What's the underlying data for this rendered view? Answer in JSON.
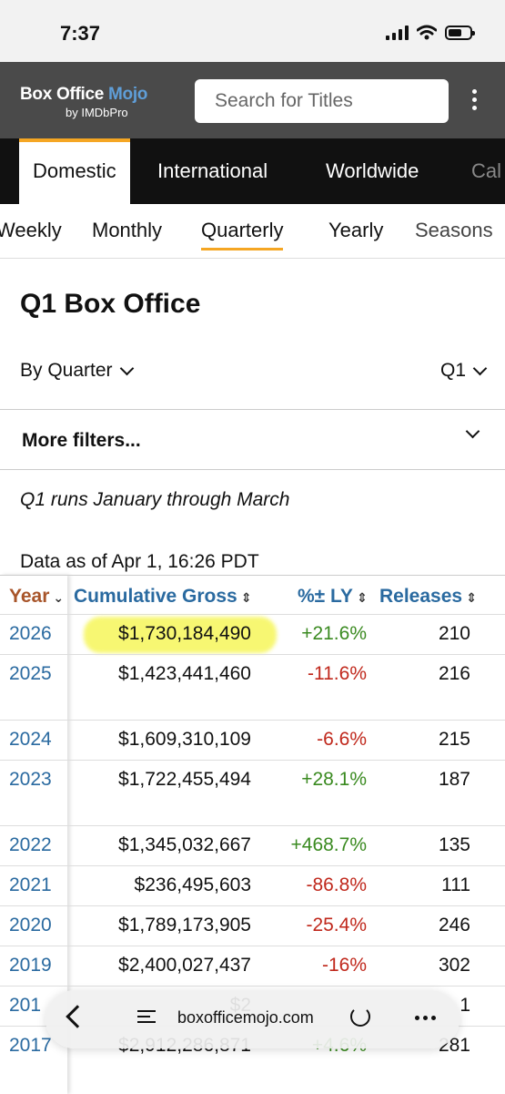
{
  "status": {
    "time": "7:37"
  },
  "header": {
    "logo_main": "Box Office ",
    "logo_accent": "Mojo",
    "logo_sub": "by IMDbPro",
    "search_placeholder": "Search for Titles"
  },
  "region_tabs": [
    "Domestic",
    "International",
    "Worldwide",
    "Cal"
  ],
  "period_tabs": [
    "Weekly",
    "Monthly",
    "Quarterly",
    "Yearly",
    "Seasons"
  ],
  "page": {
    "title": "Q1 Box Office",
    "by_select": "By Quarter",
    "quarter_select": "Q1",
    "more_filters": "More filters...",
    "note": "Q1 runs January through March",
    "as_of": "Data as of Apr 1, 16:26 PDT"
  },
  "table": {
    "headers": {
      "year": "Year",
      "gross": "Cumulative Gross",
      "change": "%± LY",
      "releases": "Releases"
    },
    "rows": [
      {
        "year": "2026",
        "gross": "$1,730,184,490",
        "change": "+21.6%",
        "releases": "210",
        "highlight": true
      },
      {
        "year": "2025",
        "gross": "$1,423,441,460",
        "change": "-11.6%",
        "releases": "216"
      },
      {
        "year": "2024",
        "gross": "$1,609,310,109",
        "change": "-6.6%",
        "releases": "215"
      },
      {
        "year": "2023",
        "gross": "$1,722,455,494",
        "change": "+28.1%",
        "releases": "187"
      },
      {
        "year": "2022",
        "gross": "$1,345,032,667",
        "change": "+468.7%",
        "releases": "135"
      },
      {
        "year": "2021",
        "gross": "$236,495,603",
        "change": "-86.8%",
        "releases": "111"
      },
      {
        "year": "2020",
        "gross": "$1,789,173,905",
        "change": "-25.4%",
        "releases": "246"
      },
      {
        "year": "2019",
        "gross": "$2,400,027,437",
        "change": "-16%",
        "releases": "302"
      },
      {
        "year": "201",
        "gross": "$2",
        "change": "",
        "releases": "1"
      },
      {
        "year": "2017",
        "gross": "$2,912,286,871",
        "change": "+4.6%",
        "releases": "281"
      }
    ]
  },
  "browser": {
    "url": "boxofficemojo.com"
  },
  "colors": {
    "accent": "#f5a623",
    "link": "#2a6aa0",
    "positive": "#3a8a20",
    "negative": "#c0281c"
  }
}
